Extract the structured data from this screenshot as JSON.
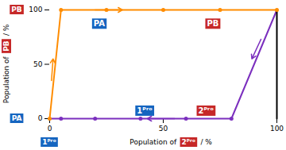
{
  "chart_data": {
    "type": "line",
    "xlabel": [
      "Population of",
      {
        "text": "2ᴾʳᵒ",
        "color": "#C62828"
      },
      "/ %"
    ],
    "ylabel": [
      "Population of",
      {
        "text": "PB",
        "color": "#C62828"
      },
      "/ %"
    ],
    "xlim": [
      0,
      100
    ],
    "ylim": [
      0,
      100
    ],
    "xticks": [
      0,
      50,
      100
    ],
    "yticks": [
      0,
      50,
      100
    ],
    "series": [
      {
        "type": "line",
        "color": "#FF8C00",
        "x": [
          0,
          5
        ],
        "values": [
          0,
          100
        ]
      },
      {
        "type": "line",
        "color": "#FF8C00",
        "x": [
          5,
          100
        ],
        "values": [
          100,
          100
        ]
      },
      {
        "type": "scatter",
        "color": "#FF8C00",
        "x": [
          5,
          25,
          50,
          75,
          100
        ],
        "values": [
          100,
          100,
          100,
          100,
          100
        ]
      },
      {
        "type": "scatter",
        "color": "#FF8C00",
        "x": [
          0
        ],
        "values": [
          0
        ]
      },
      {
        "type": "line",
        "color": "#7B2FBE",
        "x": [
          0,
          80
        ],
        "values": [
          0,
          0
        ]
      },
      {
        "type": "line",
        "color": "#7B2FBE",
        "x": [
          80,
          100
        ],
        "values": [
          0,
          100
        ]
      },
      {
        "type": "scatter",
        "color": "#7B2FBE",
        "x": [
          5,
          20,
          40,
          60,
          80
        ],
        "values": [
          0,
          0,
          0,
          0,
          0
        ]
      },
      {
        "type": "line",
        "color": "#000000",
        "x": [
          100,
          100
        ],
        "values": [
          0,
          100
        ]
      }
    ],
    "arrows": [
      {
        "color": "#FF8C00",
        "x": [
          0.8,
          1.5
        ],
        "y": [
          35,
          55
        ]
      },
      {
        "color": "#FF8C00",
        "x": [
          20,
          32
        ],
        "y": [
          100,
          100
        ]
      },
      {
        "color": "#7B2FBE",
        "x": [
          55,
          43
        ],
        "y": [
          0,
          0
        ]
      },
      {
        "color": "#7B2FBE",
        "x": [
          93,
          89
        ],
        "y": [
          73,
          55
        ]
      }
    ],
    "annotations": [
      {
        "text": "PA",
        "color": "#1565C0"
      },
      {
        "text": "PB",
        "color": "#C62828"
      },
      {
        "text": "1ᴾʳᵒ",
        "color": "#1565C0"
      },
      {
        "text": "2ᴾʳᵒ",
        "color": "#C62828"
      }
    ],
    "y_end_labels": [
      {
        "text": "PA",
        "color": "#1565C0"
      },
      {
        "text": "PB",
        "color": "#C62828"
      }
    ],
    "x_end_labels": [
      {
        "text": "1ᴾʳᵒ",
        "color": "#1565C0"
      }
    ]
  }
}
